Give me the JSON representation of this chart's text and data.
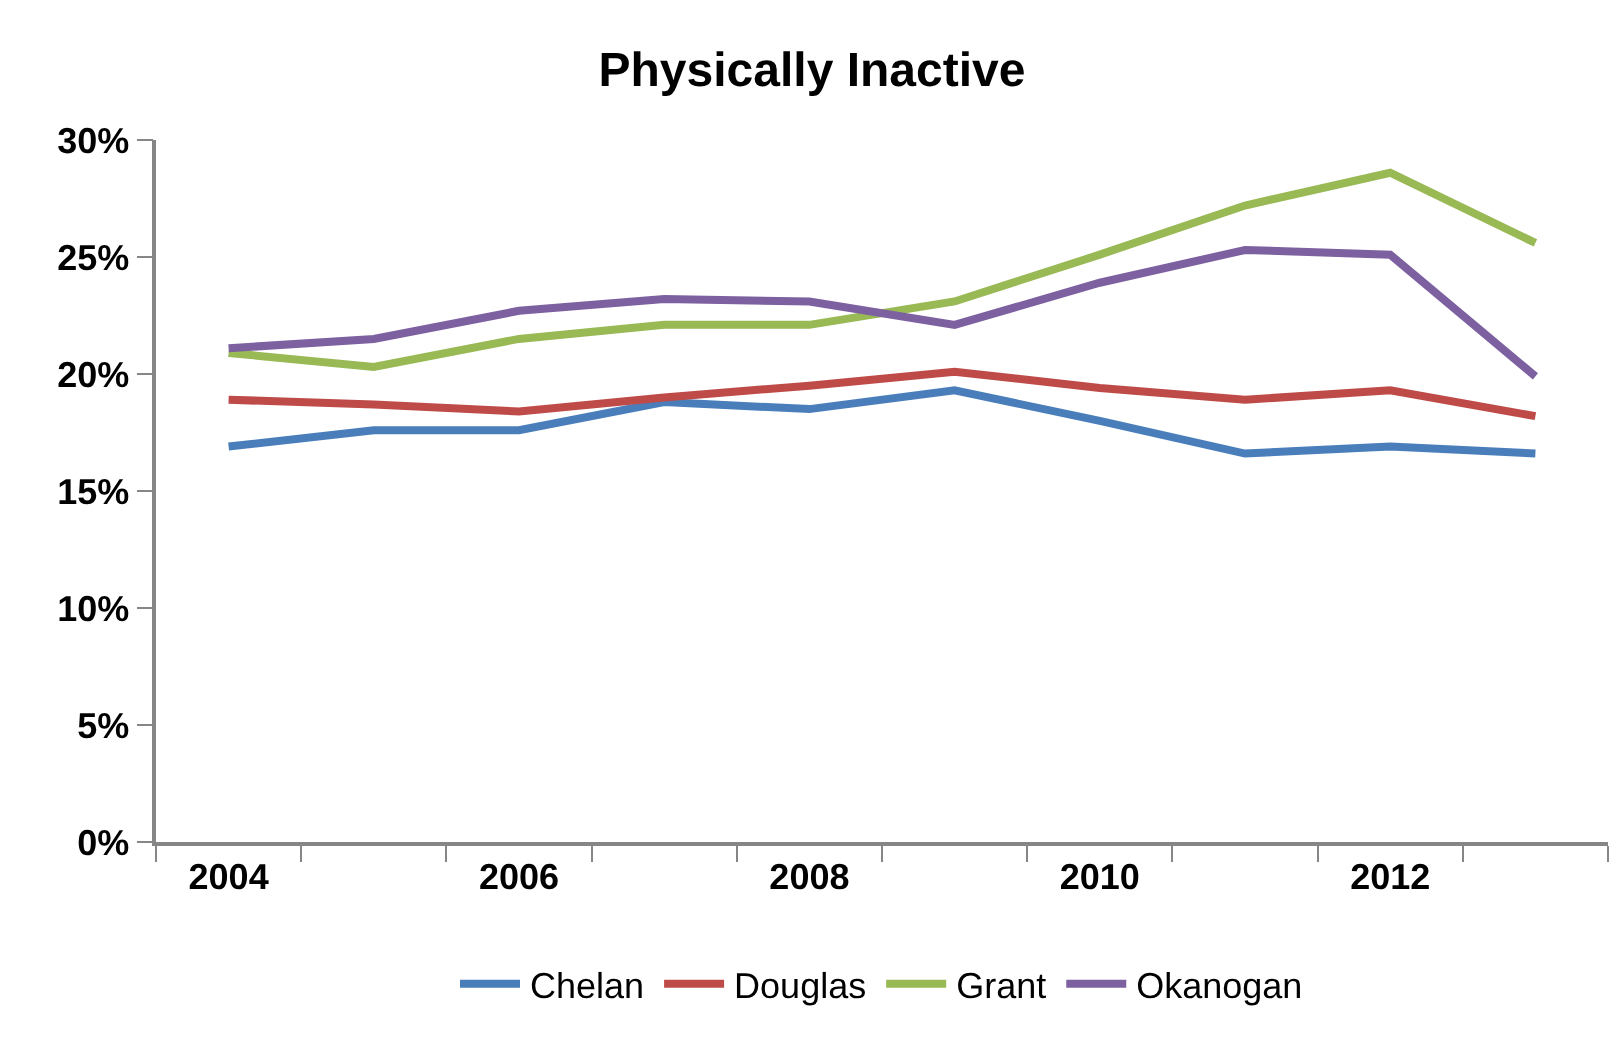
{
  "chart_data": {
    "type": "line",
    "title": "Physically Inactive",
    "categories": [
      "2004",
      null,
      "2006",
      null,
      "2008",
      null,
      "2010",
      null,
      "2012",
      null
    ],
    "series": [
      {
        "name": "Chelan",
        "color": "#4a7ebb",
        "values": [
          16.9,
          17.6,
          17.6,
          18.8,
          18.5,
          19.3,
          18.0,
          16.6,
          16.9,
          16.6
        ]
      },
      {
        "name": "Douglas",
        "color": "#be4b48",
        "values": [
          18.9,
          18.7,
          18.4,
          19.0,
          19.5,
          20.1,
          19.4,
          18.9,
          19.3,
          18.2
        ]
      },
      {
        "name": "Grant",
        "color": "#98b954",
        "values": [
          20.9,
          20.3,
          21.5,
          22.1,
          22.1,
          23.1,
          25.1,
          27.2,
          28.6,
          25.6
        ]
      },
      {
        "name": "Okanogan",
        "color": "#7d60a0",
        "values": [
          21.1,
          21.5,
          22.7,
          23.2,
          23.1,
          22.1,
          23.9,
          25.3,
          25.1,
          19.9
        ]
      }
    ],
    "ylim": [
      0,
      30
    ],
    "yticks": [
      {
        "value": 0,
        "label": "0%"
      },
      {
        "value": 5,
        "label": "5%"
      },
      {
        "value": 10,
        "label": "10%"
      },
      {
        "value": 15,
        "label": "15%"
      },
      {
        "value": 20,
        "label": "20%"
      },
      {
        "value": 25,
        "label": "25%"
      },
      {
        "value": 30,
        "label": "30%"
      }
    ],
    "grid": false,
    "legend": "bottom",
    "marker": "none",
    "line_style": "solid"
  }
}
